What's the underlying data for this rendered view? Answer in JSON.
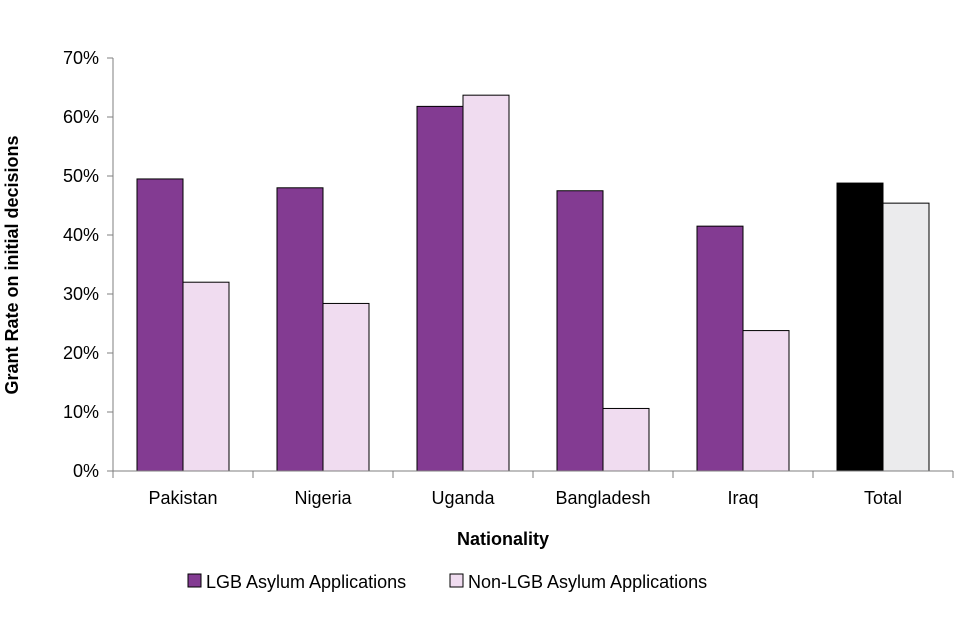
{
  "chart_data": {
    "type": "bar",
    "title": "",
    "xlabel": "Nationality",
    "ylabel": "Grant Rate on initial decisions",
    "ylim": [
      0,
      70
    ],
    "yticks": [
      "0%",
      "10%",
      "20%",
      "30%",
      "40%",
      "50%",
      "60%",
      "70%"
    ],
    "categories": [
      "Pakistan",
      "Nigeria",
      "Uganda",
      "Bangladesh",
      "Iraq",
      "Total"
    ],
    "series": [
      {
        "name": "LGB Asylum Applications",
        "values": [
          49.5,
          48,
          61.8,
          47.5,
          41.5,
          48.8
        ],
        "color": "#833b92",
        "total_color": "#000000"
      },
      {
        "name": "Non-LGB Asylum Applications",
        "values": [
          32,
          28.4,
          63.7,
          10.6,
          23.8,
          45.4
        ],
        "color": "#f0dcf0",
        "total_color": "#ebebed"
      }
    ],
    "legend": "bottom",
    "grid": false
  }
}
